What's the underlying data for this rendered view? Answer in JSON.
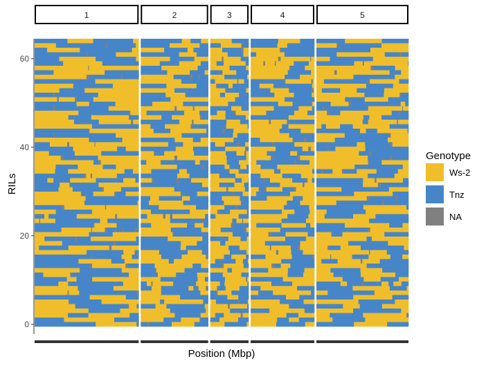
{
  "chart_data": {
    "type": "heatmap",
    "title": "",
    "xlabel": "Position (Mbp)",
    "ylabel": "RILs",
    "y_ticks": [
      0,
      20,
      40,
      60
    ],
    "ylim": [
      -0.5,
      64.5
    ],
    "rows": 64,
    "facets": [
      {
        "label": "1",
        "length_mbp": 30.4
      },
      {
        "label": "2",
        "length_mbp": 19.7
      },
      {
        "label": "3",
        "length_mbp": 11.2
      },
      {
        "label": "4",
        "length_mbp": 18.6
      },
      {
        "label": "5",
        "length_mbp": 26.9
      }
    ],
    "legend": {
      "title": "Genotype",
      "placement": "right",
      "entries": [
        {
          "label": "Ws-2",
          "color": "#F0BE2B"
        },
        {
          "label": "Tnz",
          "color": "#4686C8"
        },
        {
          "label": "NA",
          "color": "#808080"
        }
      ]
    },
    "grid": false
  }
}
